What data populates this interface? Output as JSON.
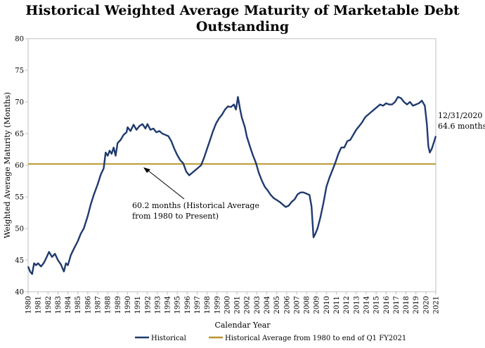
{
  "chart_data": {
    "type": "line",
    "title_lines": [
      "Historical Weighted Average Maturity of Marketable Debt",
      "Outstanding"
    ],
    "xlabel": "Calendar Year",
    "ylabel": "Weighted Average Maturity (Months)",
    "ylim": [
      40,
      80
    ],
    "yticks": [
      "40",
      "45",
      "50",
      "55",
      "60",
      "65",
      "70",
      "75",
      "80"
    ],
    "xlim": [
      1980,
      2021
    ],
    "xticks": [
      "1980",
      "1981",
      "1982",
      "1983",
      "1984",
      "1985",
      "1986",
      "1987",
      "1988",
      "1989",
      "1990",
      "1991",
      "1992",
      "1993",
      "1994",
      "1995",
      "1996",
      "1997",
      "1998",
      "1999",
      "2000",
      "2001",
      "2002",
      "2003",
      "2004",
      "2005",
      "2006",
      "2007",
      "2008",
      "2009",
      "2010",
      "2011",
      "2012",
      "2013",
      "2014",
      "2015",
      "2016",
      "2017",
      "2018",
      "2019",
      "2020",
      "2021"
    ],
    "series": [
      {
        "name": "Historical",
        "color": "#1f3a6e",
        "points": [
          [
            1980.0,
            44.0
          ],
          [
            1980.2,
            43.2
          ],
          [
            1980.4,
            42.8
          ],
          [
            1980.6,
            44.5
          ],
          [
            1980.8,
            44.2
          ],
          [
            1981.0,
            44.5
          ],
          [
            1981.3,
            44.0
          ],
          [
            1981.6,
            44.6
          ],
          [
            1981.9,
            45.6
          ],
          [
            1982.1,
            46.3
          ],
          [
            1982.4,
            45.5
          ],
          [
            1982.7,
            46.0
          ],
          [
            1983.0,
            45.0
          ],
          [
            1983.3,
            44.3
          ],
          [
            1983.6,
            43.2
          ],
          [
            1983.8,
            44.5
          ],
          [
            1984.0,
            44.2
          ],
          [
            1984.3,
            45.8
          ],
          [
            1984.6,
            46.8
          ],
          [
            1985.0,
            48.0
          ],
          [
            1985.3,
            49.2
          ],
          [
            1985.6,
            50.0
          ],
          [
            1986.0,
            52.0
          ],
          [
            1986.3,
            53.8
          ],
          [
            1986.6,
            55.3
          ],
          [
            1987.0,
            57.0
          ],
          [
            1987.3,
            58.5
          ],
          [
            1987.6,
            59.5
          ],
          [
            1987.8,
            62.0
          ],
          [
            1988.0,
            61.5
          ],
          [
            1988.2,
            62.3
          ],
          [
            1988.4,
            61.8
          ],
          [
            1988.6,
            62.8
          ],
          [
            1988.8,
            61.5
          ],
          [
            1989.0,
            63.5
          ],
          [
            1989.3,
            64.0
          ],
          [
            1989.6,
            64.8
          ],
          [
            1989.9,
            65.2
          ],
          [
            1990.0,
            66.0
          ],
          [
            1990.3,
            65.4
          ],
          [
            1990.6,
            66.4
          ],
          [
            1990.9,
            65.6
          ],
          [
            1991.2,
            66.2
          ],
          [
            1991.5,
            66.5
          ],
          [
            1991.8,
            65.8
          ],
          [
            1992.0,
            66.5
          ],
          [
            1992.3,
            65.6
          ],
          [
            1992.6,
            65.8
          ],
          [
            1992.9,
            65.2
          ],
          [
            1993.2,
            65.4
          ],
          [
            1993.5,
            65.0
          ],
          [
            1993.8,
            64.8
          ],
          [
            1994.1,
            64.6
          ],
          [
            1994.4,
            63.8
          ],
          [
            1994.7,
            62.6
          ],
          [
            1995.0,
            61.6
          ],
          [
            1995.3,
            60.8
          ],
          [
            1995.6,
            60.3
          ],
          [
            1995.9,
            59.0
          ],
          [
            1996.2,
            58.4
          ],
          [
            1996.5,
            58.8
          ],
          [
            1996.8,
            59.2
          ],
          [
            1997.1,
            59.6
          ],
          [
            1997.4,
            60.0
          ],
          [
            1997.7,
            61.2
          ],
          [
            1998.0,
            62.6
          ],
          [
            1998.3,
            64.0
          ],
          [
            1998.6,
            65.4
          ],
          [
            1998.9,
            66.6
          ],
          [
            1999.2,
            67.4
          ],
          [
            1999.5,
            68.0
          ],
          [
            1999.8,
            68.8
          ],
          [
            2000.1,
            69.3
          ],
          [
            2000.4,
            69.2
          ],
          [
            2000.7,
            69.6
          ],
          [
            2000.9,
            68.8
          ],
          [
            2001.1,
            70.8
          ],
          [
            2001.3,
            69.0
          ],
          [
            2001.5,
            67.5
          ],
          [
            2001.8,
            66.0
          ],
          [
            2002.0,
            64.5
          ],
          [
            2002.3,
            63.0
          ],
          [
            2002.6,
            61.6
          ],
          [
            2002.9,
            60.4
          ],
          [
            2003.2,
            58.8
          ],
          [
            2003.5,
            57.6
          ],
          [
            2003.8,
            56.6
          ],
          [
            2004.1,
            56.0
          ],
          [
            2004.4,
            55.3
          ],
          [
            2004.7,
            54.8
          ],
          [
            2005.0,
            54.5
          ],
          [
            2005.3,
            54.2
          ],
          [
            2005.6,
            53.8
          ],
          [
            2005.9,
            53.4
          ],
          [
            2006.2,
            53.6
          ],
          [
            2006.5,
            54.2
          ],
          [
            2006.8,
            54.6
          ],
          [
            2007.1,
            55.4
          ],
          [
            2007.4,
            55.7
          ],
          [
            2007.7,
            55.7
          ],
          [
            2008.0,
            55.5
          ],
          [
            2008.3,
            55.3
          ],
          [
            2008.5,
            53.5
          ],
          [
            2008.7,
            48.6
          ],
          [
            2008.9,
            49.2
          ],
          [
            2009.1,
            50.0
          ],
          [
            2009.4,
            51.8
          ],
          [
            2009.7,
            54.0
          ],
          [
            2010.0,
            56.6
          ],
          [
            2010.3,
            58.0
          ],
          [
            2010.6,
            59.2
          ],
          [
            2010.9,
            60.4
          ],
          [
            2011.2,
            61.8
          ],
          [
            2011.5,
            62.8
          ],
          [
            2011.8,
            62.8
          ],
          [
            2012.1,
            63.8
          ],
          [
            2012.4,
            64.0
          ],
          [
            2012.7,
            64.8
          ],
          [
            2013.0,
            65.6
          ],
          [
            2013.3,
            66.2
          ],
          [
            2013.6,
            66.8
          ],
          [
            2013.9,
            67.6
          ],
          [
            2014.2,
            68.0
          ],
          [
            2014.5,
            68.4
          ],
          [
            2014.8,
            68.8
          ],
          [
            2015.1,
            69.2
          ],
          [
            2015.4,
            69.6
          ],
          [
            2015.7,
            69.4
          ],
          [
            2016.0,
            69.8
          ],
          [
            2016.3,
            69.6
          ],
          [
            2016.6,
            69.6
          ],
          [
            2016.9,
            70.0
          ],
          [
            2017.2,
            70.8
          ],
          [
            2017.5,
            70.6
          ],
          [
            2017.8,
            70.0
          ],
          [
            2018.1,
            69.6
          ],
          [
            2018.4,
            70.0
          ],
          [
            2018.7,
            69.4
          ],
          [
            2019.0,
            69.6
          ],
          [
            2019.3,
            69.8
          ],
          [
            2019.6,
            70.2
          ],
          [
            2019.9,
            69.4
          ],
          [
            2020.1,
            66.5
          ],
          [
            2020.25,
            63.0
          ],
          [
            2020.4,
            62.0
          ],
          [
            2020.6,
            62.6
          ],
          [
            2020.8,
            63.6
          ],
          [
            2021.0,
            64.6
          ]
        ]
      },
      {
        "name": "Historical Average from 1980 to end of Q1 FY2021",
        "color": "#b8962e",
        "constant": 60.2
      }
    ],
    "annotations": {
      "average_label": [
        "60.2 months (Historical Average",
        "from 1980 to Present)"
      ],
      "end_label": [
        "12/31/2020",
        "64.6 months"
      ]
    }
  }
}
